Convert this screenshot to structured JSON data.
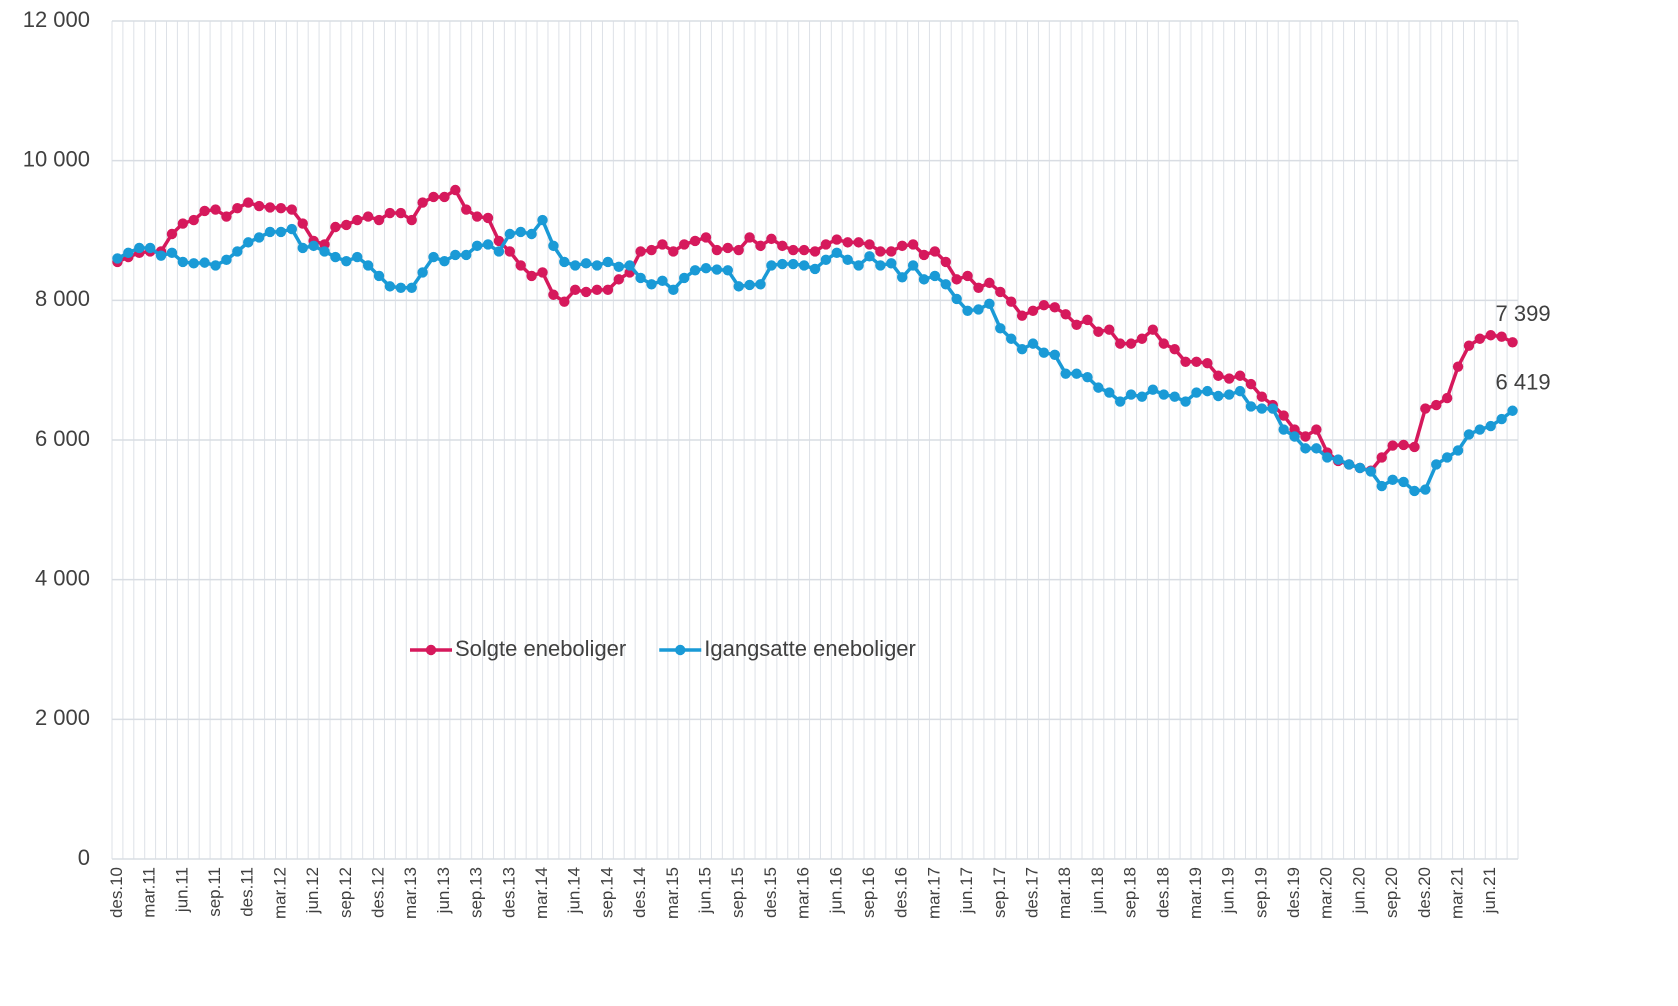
{
  "chart_data": {
    "type": "line",
    "categories": [
      "des.10",
      null,
      null,
      "mar.11",
      null,
      null,
      "jun.11",
      null,
      null,
      "sep.11",
      null,
      null,
      "des.11",
      null,
      null,
      "mar.12",
      null,
      null,
      "jun.12",
      null,
      null,
      "sep.12",
      null,
      null,
      "des.12",
      null,
      null,
      "mar.13",
      null,
      null,
      "jun.13",
      null,
      null,
      "sep.13",
      null,
      null,
      "des.13",
      null,
      null,
      "mar.14",
      null,
      null,
      "jun.14",
      null,
      null,
      "sep.14",
      null,
      null,
      "des.14",
      null,
      null,
      "mar.15",
      null,
      null,
      "jun.15",
      null,
      null,
      "sep.15",
      null,
      null,
      "des.15",
      null,
      null,
      "mar.16",
      null,
      null,
      "jun.16",
      null,
      null,
      "sep.16",
      null,
      null,
      "des.16",
      null,
      null,
      "mar.17",
      null,
      null,
      "jun.17",
      null,
      null,
      "sep.17",
      null,
      null,
      "des.17",
      null,
      null,
      "mar.18",
      null,
      null,
      "jun.18",
      null,
      null,
      "sep.18",
      null,
      null,
      "des.18",
      null,
      null,
      "mar.19",
      null,
      null,
      "jun.19",
      null,
      null,
      "sep.19",
      null,
      null,
      "des.19",
      null,
      null,
      "mar.20",
      null,
      null,
      "jun.20",
      null,
      null,
      "sep.20",
      null,
      null,
      "des.20",
      null,
      null,
      "mar.21",
      null,
      null,
      "jun.21",
      null,
      null
    ],
    "series": [
      {
        "name": "Solgte eneboliger",
        "color": "#d6195c",
        "values": [
          8550,
          8620,
          8680,
          8700,
          8700,
          8950,
          9100,
          9150,
          9280,
          9300,
          9200,
          9320,
          9400,
          9350,
          9330,
          9320,
          9300,
          9100,
          8850,
          8800,
          9050,
          9080,
          9150,
          9200,
          9150,
          9250,
          9250,
          9150,
          9400,
          9480,
          9480,
          9580,
          9300,
          9200,
          9180,
          8850,
          8700,
          8500,
          8350,
          8400,
          8080,
          7980,
          8150,
          8120,
          8150,
          8150,
          8300,
          8400,
          8700,
          8720,
          8800,
          8700,
          8800,
          8850,
          8900,
          8720,
          8750,
          8720,
          8900,
          8780,
          8880,
          8780,
          8720,
          8720,
          8700,
          8800,
          8870,
          8830,
          8830,
          8800,
          8700,
          8700,
          8780,
          8800,
          8650,
          8700,
          8550,
          8300,
          8350,
          8180,
          8250,
          8120,
          7980,
          7780,
          7850,
          7930,
          7900,
          7800,
          7650,
          7720,
          7550,
          7580,
          7380,
          7380,
          7450,
          7580,
          7380,
          7300,
          7120,
          7120,
          7100,
          6920,
          6880,
          6920,
          6800,
          6620,
          6500,
          6350,
          6150,
          6050,
          6150,
          5820,
          5700,
          5650,
          5600,
          5560,
          5750,
          5920,
          5930,
          5900,
          6450,
          6500,
          6600,
          7050,
          7350,
          7450,
          7500,
          7480,
          7399
        ],
        "value_labels": [
          null,
          null,
          null,
          null,
          null,
          null,
          null,
          null,
          null,
          null,
          null,
          null,
          null,
          null,
          null,
          null,
          null,
          null,
          null,
          null,
          null,
          null,
          null,
          null,
          null,
          null,
          null,
          null,
          null,
          null,
          null,
          null,
          null,
          null,
          null,
          null,
          null,
          null,
          null,
          null,
          null,
          null,
          null,
          null,
          null,
          null,
          null,
          null,
          null,
          null,
          null,
          null,
          null,
          null,
          null,
          null,
          null,
          null,
          null,
          null,
          null,
          null,
          null,
          null,
          null,
          null,
          null,
          null,
          null,
          null,
          null,
          null,
          null,
          null,
          null,
          null,
          null,
          null,
          null,
          null,
          null,
          null,
          null,
          null,
          null,
          null,
          null,
          null,
          null,
          null,
          null,
          null,
          null,
          null,
          null,
          null,
          null,
          null,
          null,
          null,
          null,
          null,
          null,
          null,
          null,
          null,
          null,
          null,
          null,
          null,
          null,
          null,
          null,
          null,
          null,
          null,
          null,
          null,
          null,
          null,
          null,
          null,
          null,
          null,
          null,
          null,
          null,
          null,
          "7 399"
        ]
      },
      {
        "name": "Igangsatte eneboliger",
        "color": "#1a9ad6",
        "values": [
          8600,
          8680,
          8750,
          8750,
          8640,
          8680,
          8550,
          8530,
          8540,
          8500,
          8580,
          8700,
          8830,
          8900,
          8980,
          8980,
          9020,
          8750,
          8780,
          8700,
          8620,
          8560,
          8620,
          8500,
          8350,
          8200,
          8180,
          8180,
          8400,
          8620,
          8560,
          8650,
          8650,
          8780,
          8800,
          8700,
          8950,
          8980,
          8950,
          9150,
          8780,
          8550,
          8500,
          8530,
          8500,
          8550,
          8480,
          8500,
          8320,
          8230,
          8280,
          8150,
          8320,
          8430,
          8460,
          8440,
          8430,
          8200,
          8220,
          8230,
          8500,
          8520,
          8520,
          8500,
          8450,
          8580,
          8680,
          8580,
          8500,
          8630,
          8500,
          8530,
          8330,
          8500,
          8300,
          8350,
          8230,
          8020,
          7850,
          7870,
          7950,
          7600,
          7450,
          7300,
          7380,
          7250,
          7220,
          6950,
          6950,
          6900,
          6750,
          6680,
          6550,
          6650,
          6620,
          6720,
          6650,
          6620,
          6550,
          6680,
          6700,
          6630,
          6650,
          6700,
          6480,
          6450,
          6450,
          6150,
          6050,
          5880,
          5880,
          5750,
          5720,
          5650,
          5600,
          5550,
          5340,
          5430,
          5400,
          5270,
          5290,
          5650,
          5750,
          5850,
          6080,
          6150,
          6200,
          6300,
          6419
        ],
        "value_labels": [
          null,
          null,
          null,
          null,
          null,
          null,
          null,
          null,
          null,
          null,
          null,
          null,
          null,
          null,
          null,
          null,
          null,
          null,
          null,
          null,
          null,
          null,
          null,
          null,
          null,
          null,
          null,
          null,
          null,
          null,
          null,
          null,
          null,
          null,
          null,
          null,
          null,
          null,
          null,
          null,
          null,
          null,
          null,
          null,
          null,
          null,
          null,
          null,
          null,
          null,
          null,
          null,
          null,
          null,
          null,
          null,
          null,
          null,
          null,
          null,
          null,
          null,
          null,
          null,
          null,
          null,
          null,
          null,
          null,
          null,
          null,
          null,
          null,
          null,
          null,
          null,
          null,
          null,
          null,
          null,
          null,
          null,
          null,
          null,
          null,
          null,
          null,
          null,
          null,
          null,
          null,
          null,
          null,
          null,
          null,
          null,
          null,
          null,
          null,
          null,
          null,
          null,
          null,
          null,
          null,
          null,
          null,
          null,
          null,
          null,
          null,
          null,
          null,
          null,
          null,
          null,
          null,
          null,
          null,
          null,
          null,
          null,
          null,
          null,
          null,
          null,
          null,
          null,
          "6 419"
        ]
      }
    ],
    "ylim": [
      0,
      12000
    ],
    "yticks": [
      0,
      {
        "value": 2000,
        "label": "2 000"
      },
      {
        "value": 4000,
        "label": "4 000"
      },
      {
        "value": 6000,
        "label": "6 000"
      },
      {
        "value": 8000,
        "label": "8 000"
      },
      {
        "value": 10000,
        "label": "10 000"
      },
      {
        "value": 12000,
        "label": "12 000"
      }
    ],
    "grid": true,
    "legend": "center"
  }
}
